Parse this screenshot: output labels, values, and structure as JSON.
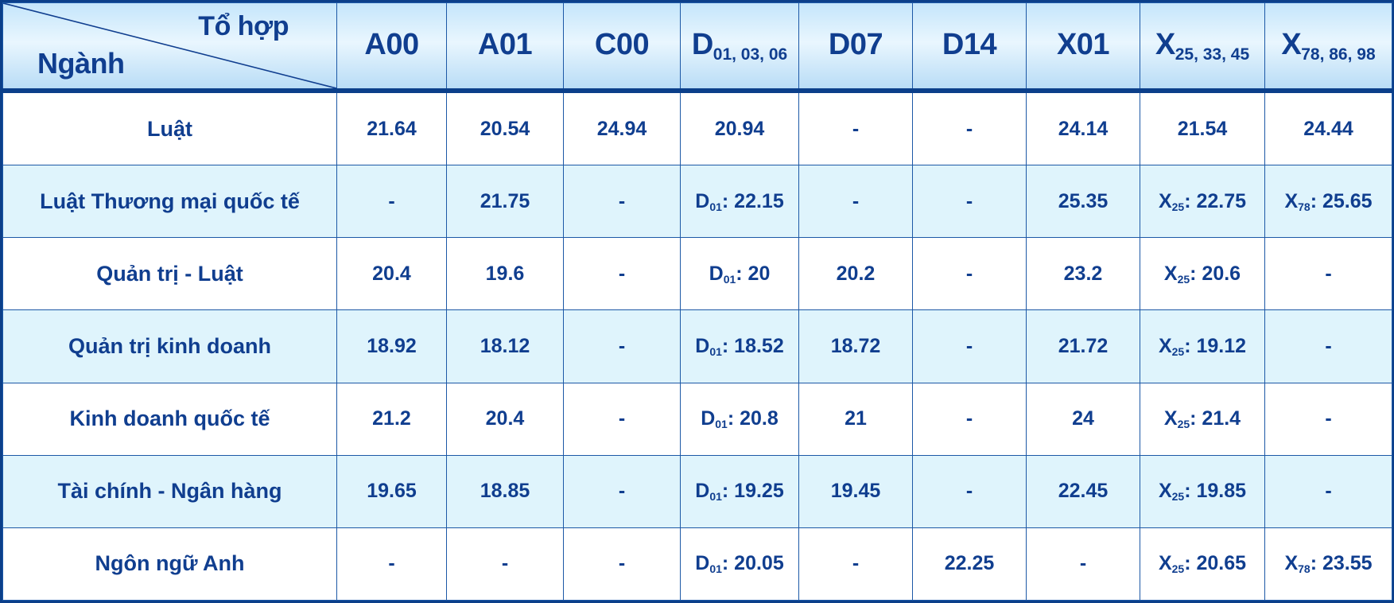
{
  "header": {
    "corner_top": "Tổ hợp",
    "corner_bottom": "Ngành",
    "columns": [
      {
        "main": "A00",
        "sub": ""
      },
      {
        "main": "A01",
        "sub": ""
      },
      {
        "main": "C00",
        "sub": ""
      },
      {
        "main": "D",
        "sub": "01, 03, 06"
      },
      {
        "main": "D07",
        "sub": ""
      },
      {
        "main": "D14",
        "sub": ""
      },
      {
        "main": "X01",
        "sub": ""
      },
      {
        "main": "X",
        "sub": "25, 33, 45"
      },
      {
        "main": "X",
        "sub": "78, 86, 98"
      }
    ]
  },
  "rows": [
    {
      "major": "Luật",
      "cells": [
        {
          "p": "",
          "s": "",
          "v": "21.64"
        },
        {
          "p": "",
          "s": "",
          "v": "20.54"
        },
        {
          "p": "",
          "s": "",
          "v": "24.94"
        },
        {
          "p": "",
          "s": "",
          "v": "20.94"
        },
        {
          "p": "",
          "s": "",
          "v": "-"
        },
        {
          "p": "",
          "s": "",
          "v": "-"
        },
        {
          "p": "",
          "s": "",
          "v": "24.14"
        },
        {
          "p": "",
          "s": "",
          "v": "21.54"
        },
        {
          "p": "",
          "s": "",
          "v": "24.44"
        }
      ]
    },
    {
      "major": "Luật Thương mại quốc tế",
      "cells": [
        {
          "p": "",
          "s": "",
          "v": "-"
        },
        {
          "p": "",
          "s": "",
          "v": "21.75"
        },
        {
          "p": "",
          "s": "",
          "v": "-"
        },
        {
          "p": "D",
          "s": "01",
          "v": ": 22.15"
        },
        {
          "p": "",
          "s": "",
          "v": "-"
        },
        {
          "p": "",
          "s": "",
          "v": "-"
        },
        {
          "p": "",
          "s": "",
          "v": "25.35"
        },
        {
          "p": "X",
          "s": "25",
          "v": ": 22.75"
        },
        {
          "p": "X",
          "s": "78",
          "v": ": 25.65"
        }
      ]
    },
    {
      "major": "Quản trị - Luật",
      "cells": [
        {
          "p": "",
          "s": "",
          "v": "20.4"
        },
        {
          "p": "",
          "s": "",
          "v": "19.6"
        },
        {
          "p": "",
          "s": "",
          "v": "-"
        },
        {
          "p": "D",
          "s": "01",
          "v": ": 20"
        },
        {
          "p": "",
          "s": "",
          "v": "20.2"
        },
        {
          "p": "",
          "s": "",
          "v": "-"
        },
        {
          "p": "",
          "s": "",
          "v": "23.2"
        },
        {
          "p": "X",
          "s": "25",
          "v": ": 20.6"
        },
        {
          "p": "",
          "s": "",
          "v": "-"
        }
      ]
    },
    {
      "major": "Quản trị kinh doanh",
      "cells": [
        {
          "p": "",
          "s": "",
          "v": "18.92"
        },
        {
          "p": "",
          "s": "",
          "v": "18.12"
        },
        {
          "p": "",
          "s": "",
          "v": "-"
        },
        {
          "p": "D",
          "s": "01",
          "v": ": 18.52"
        },
        {
          "p": "",
          "s": "",
          "v": "18.72"
        },
        {
          "p": "",
          "s": "",
          "v": "-"
        },
        {
          "p": "",
          "s": "",
          "v": "21.72"
        },
        {
          "p": "X",
          "s": "25",
          "v": ": 19.12"
        },
        {
          "p": "",
          "s": "",
          "v": "-"
        }
      ]
    },
    {
      "major": "Kinh doanh quốc tế",
      "cells": [
        {
          "p": "",
          "s": "",
          "v": "21.2"
        },
        {
          "p": "",
          "s": "",
          "v": "20.4"
        },
        {
          "p": "",
          "s": "",
          "v": "-"
        },
        {
          "p": "D",
          "s": "01",
          "v": ": 20.8"
        },
        {
          "p": "",
          "s": "",
          "v": "21"
        },
        {
          "p": "",
          "s": "",
          "v": "-"
        },
        {
          "p": "",
          "s": "",
          "v": "24"
        },
        {
          "p": "X",
          "s": "25",
          "v": ": 21.4"
        },
        {
          "p": "",
          "s": "",
          "v": "-"
        }
      ]
    },
    {
      "major": "Tài chính - Ngân hàng",
      "cells": [
        {
          "p": "",
          "s": "",
          "v": "19.65"
        },
        {
          "p": "",
          "s": "",
          "v": "18.85"
        },
        {
          "p": "",
          "s": "",
          "v": "-"
        },
        {
          "p": "D",
          "s": "01",
          "v": ": 19.25"
        },
        {
          "p": "",
          "s": "",
          "v": "19.45"
        },
        {
          "p": "",
          "s": "",
          "v": "-"
        },
        {
          "p": "",
          "s": "",
          "v": "22.45"
        },
        {
          "p": "X",
          "s": "25",
          "v": ": 19.85"
        },
        {
          "p": "",
          "s": "",
          "v": "-"
        }
      ]
    },
    {
      "major": "Ngôn ngữ Anh",
      "cells": [
        {
          "p": "",
          "s": "",
          "v": "-"
        },
        {
          "p": "",
          "s": "",
          "v": "-"
        },
        {
          "p": "",
          "s": "",
          "v": "-"
        },
        {
          "p": "D",
          "s": "01",
          "v": ": 20.05"
        },
        {
          "p": "",
          "s": "",
          "v": "-"
        },
        {
          "p": "",
          "s": "",
          "v": "22.25"
        },
        {
          "p": "",
          "s": "",
          "v": "-"
        },
        {
          "p": "X",
          "s": "25",
          "v": ": 20.65"
        },
        {
          "p": "X",
          "s": "78",
          "v": ": 23.55"
        }
      ]
    }
  ]
}
